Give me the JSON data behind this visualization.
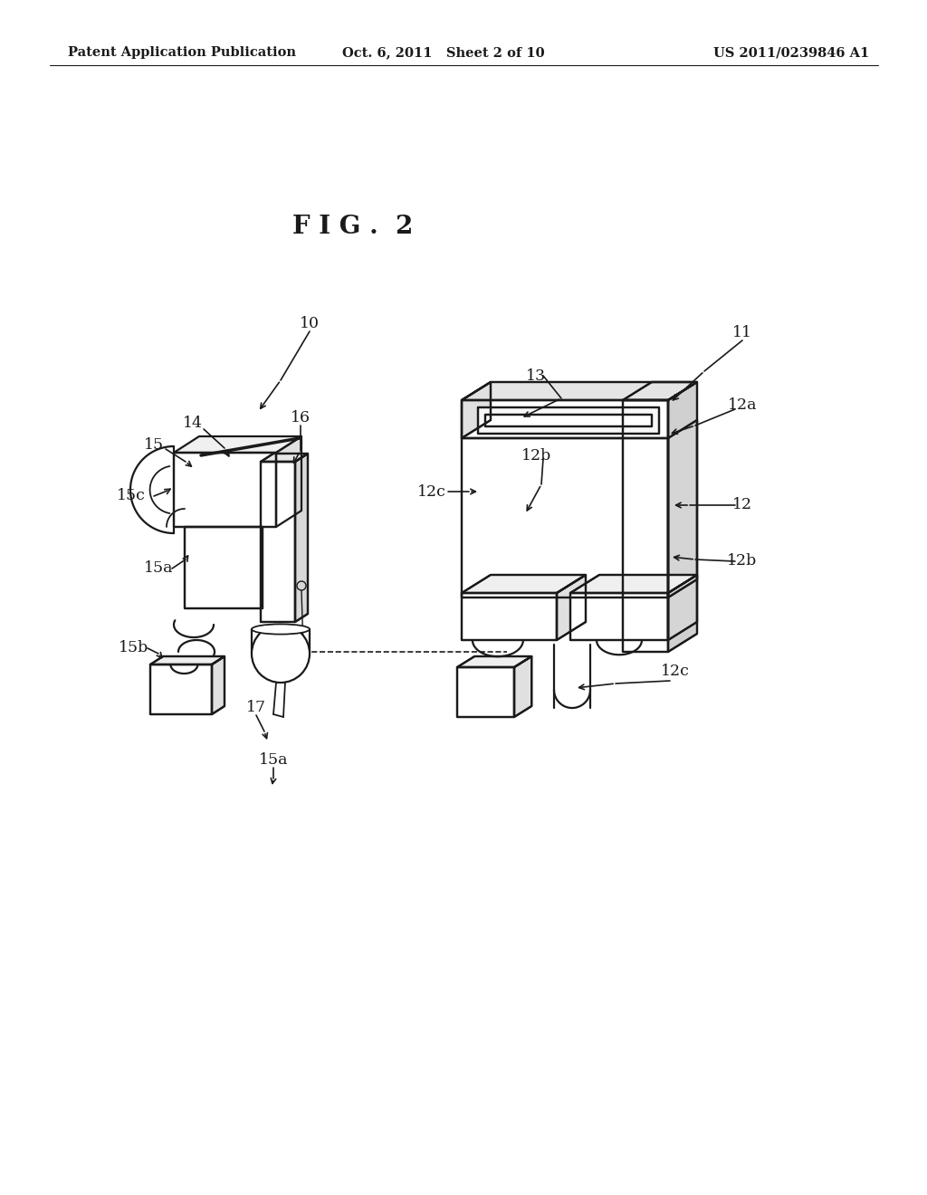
{
  "bg_color": "#ffffff",
  "line_color": "#1a1a1a",
  "header_left": "Patent Application Publication",
  "header_center": "Oct. 6, 2011   Sheet 2 of 10",
  "header_right": "US 2011/0239846 A1",
  "fig_label": "F I G .  2",
  "header_fontsize": 10.5,
  "fig_label_fontsize": 20,
  "label_fontsize": 12.5,
  "lw": 1.6
}
